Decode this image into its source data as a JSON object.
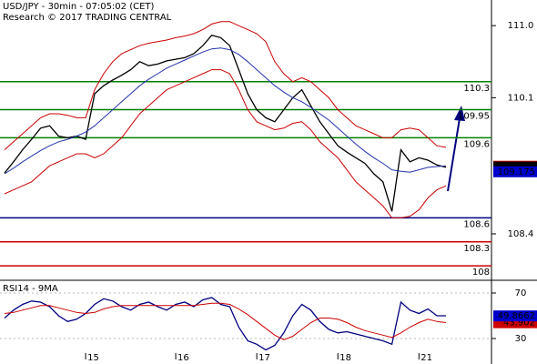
{
  "chart_data": [
    {
      "type": "line",
      "title": "USD/JPY - 30min - 07:05:02 (CET)",
      "subtitle": "Research © 2017 TRADING CENTRAL",
      "categories": [
        null,
        null,
        null,
        null,
        null,
        null,
        null,
        null,
        null,
        "15",
        null,
        null,
        null,
        null,
        null,
        null,
        null,
        null,
        null,
        "16",
        null,
        null,
        null,
        null,
        null,
        null,
        null,
        null,
        "17",
        null,
        null,
        null,
        null,
        null,
        null,
        null,
        null,
        "18",
        null,
        null,
        null,
        null,
        null,
        null,
        null,
        null,
        "21",
        null,
        null,
        null
      ],
      "series": [
        {
          "color": "#000000",
          "values": [
            109.16,
            109.3,
            109.45,
            109.58,
            109.72,
            109.75,
            109.62,
            109.6,
            109.62,
            109.58,
            110.15,
            110.25,
            110.32,
            110.38,
            110.45,
            110.55,
            110.5,
            110.52,
            110.56,
            110.58,
            110.6,
            110.65,
            110.75,
            110.88,
            110.85,
            110.75,
            110.45,
            110.15,
            109.95,
            109.85,
            109.8,
            109.95,
            110.1,
            110.2,
            110.0,
            109.8,
            109.65,
            109.5,
            109.42,
            109.35,
            109.28,
            109.15,
            109.05,
            108.68,
            109.45,
            109.3,
            109.35,
            109.32,
            109.26,
            109.23
          ]
        },
        {
          "color": "#2233aa",
          "values": [
            109.15,
            109.22,
            109.3,
            109.37,
            109.44,
            109.5,
            109.55,
            109.58,
            109.62,
            109.67,
            109.75,
            109.85,
            109.95,
            110.05,
            110.15,
            110.25,
            110.33,
            110.4,
            110.47,
            110.52,
            110.57,
            110.62,
            110.67,
            110.71,
            110.72,
            110.7,
            110.64,
            110.55,
            110.45,
            110.35,
            110.25,
            110.17,
            110.1,
            110.05,
            109.98,
            109.9,
            109.82,
            109.72,
            109.62,
            109.52,
            109.43,
            109.35,
            109.28,
            109.2,
            109.18,
            109.17,
            109.2,
            109.23,
            109.24,
            109.25
          ]
        },
        {
          "color": "#cc0000",
          "values": [
            109.45,
            109.55,
            109.65,
            109.75,
            109.85,
            109.9,
            109.9,
            109.88,
            109.85,
            109.85,
            110.2,
            110.4,
            110.55,
            110.65,
            110.7,
            110.75,
            110.78,
            110.8,
            110.82,
            110.85,
            110.87,
            110.9,
            110.95,
            111.02,
            111.05,
            111.05,
            111.0,
            110.95,
            110.9,
            110.8,
            110.55,
            110.4,
            110.3,
            110.35,
            110.3,
            110.2,
            110.1,
            109.95,
            109.85,
            109.75,
            109.7,
            109.65,
            109.6,
            109.6,
            109.7,
            109.72,
            109.7,
            109.6,
            109.5,
            109.48
          ]
        },
        {
          "color": "#cc0000",
          "values": [
            108.9,
            108.95,
            109.0,
            109.05,
            109.15,
            109.25,
            109.3,
            109.35,
            109.4,
            109.4,
            109.35,
            109.4,
            109.5,
            109.6,
            109.75,
            109.9,
            110.0,
            110.1,
            110.2,
            110.25,
            110.3,
            110.35,
            110.4,
            110.45,
            110.45,
            110.4,
            110.2,
            109.95,
            109.8,
            109.75,
            109.7,
            109.72,
            109.78,
            109.8,
            109.7,
            109.55,
            109.45,
            109.35,
            109.2,
            109.05,
            108.95,
            108.85,
            108.75,
            108.6,
            108.6,
            108.62,
            108.7,
            108.85,
            108.95,
            109.0
          ]
        }
      ],
      "ylim": [
        107.82,
        111.32
      ],
      "yticks": [
        {
          "value": 111,
          "label": "111.0"
        },
        110.1,
        108.4
      ],
      "levels": [
        {
          "value": 110.3,
          "color": "#008000"
        },
        {
          "value": 109.95,
          "color": "#008000"
        },
        {
          "value": 109.6,
          "color": "#008000"
        },
        {
          "value": 108.6,
          "color": "#000080"
        },
        {
          "value": 108.3,
          "color": "#cc0000"
        },
        {
          "value": 108,
          "color": "#cc0000"
        }
      ],
      "price_tags": [
        {
          "value": 109.244,
          "color": "#cc0000"
        },
        {
          "value": 109.234,
          "color": "#000000"
        },
        {
          "value": 109.175,
          "color": "#0000cc"
        }
      ]
    },
    {
      "type": "line",
      "title": "RSI14 - 9MA",
      "series": [
        {
          "color": "#000080",
          "values": [
            48,
            55,
            60,
            63,
            62,
            58,
            50,
            45,
            47,
            52,
            60,
            65,
            63,
            58,
            55,
            60,
            62,
            58,
            55,
            60,
            62,
            58,
            64,
            66,
            60,
            58,
            40,
            28,
            25,
            20,
            24,
            35,
            50,
            60,
            55,
            45,
            38,
            35,
            36,
            34,
            32,
            30,
            28,
            25,
            62,
            55,
            52,
            56,
            50,
            50
          ]
        },
        {
          "color": "#cc0000",
          "values": [
            52,
            53,
            55,
            57,
            59,
            59,
            57,
            55,
            53,
            52,
            53,
            56,
            58,
            59,
            59,
            59,
            59,
            59,
            59,
            59,
            59,
            59,
            60,
            61,
            61,
            60,
            56,
            51,
            45,
            39,
            33,
            29,
            32,
            38,
            44,
            48,
            48,
            47,
            44,
            40,
            37,
            35,
            33,
            31,
            35,
            40,
            44,
            47,
            45,
            44
          ]
        }
      ],
      "ylim": [
        11.6,
        79.6
      ],
      "yticks": [
        70,
        30
      ],
      "price_tags": [
        {
          "value": 43.902,
          "color": "#cc0000"
        },
        {
          "value": 49.8662,
          "color": "#0000cc"
        }
      ]
    }
  ]
}
